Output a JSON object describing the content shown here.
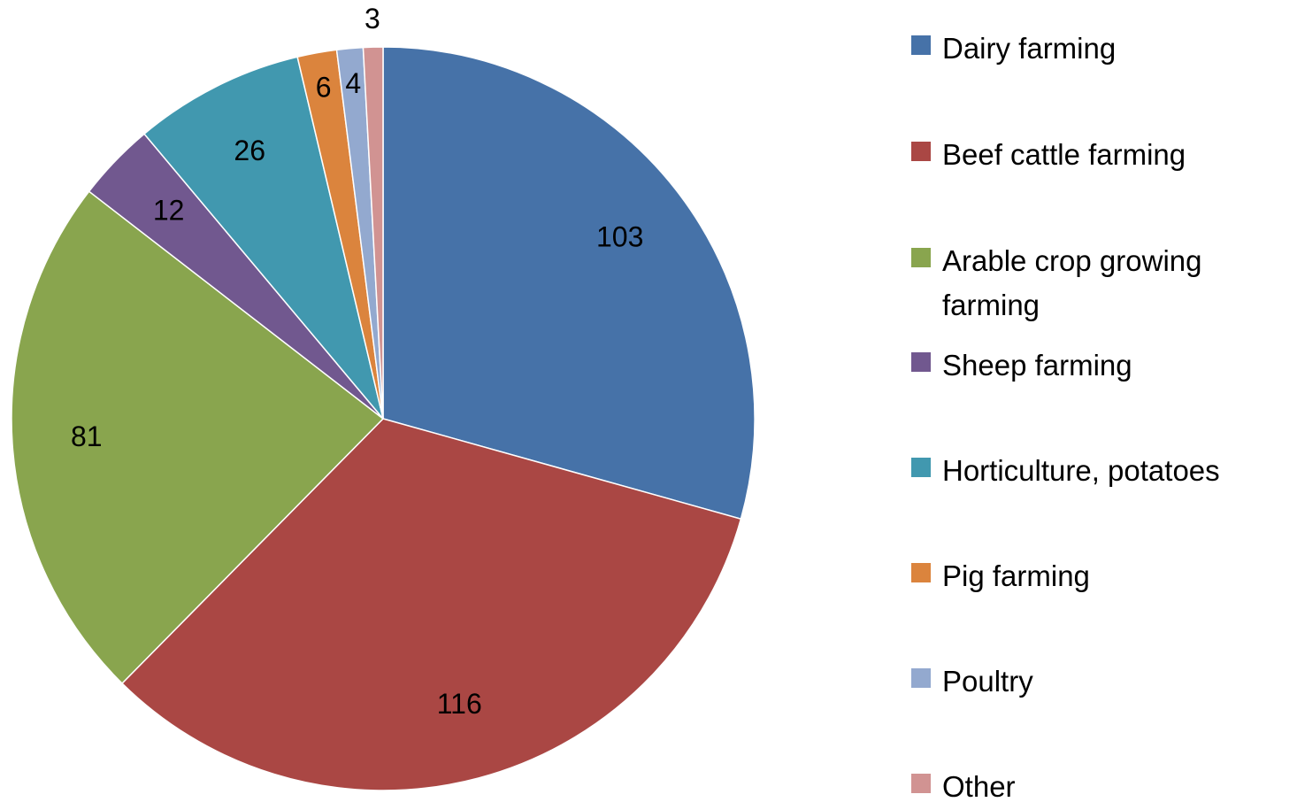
{
  "chart_data": {
    "type": "pie",
    "categories": [
      "Dairy farming",
      "Beef cattle farming",
      "Arable crop growing farming",
      "Sheep farming",
      "Horticulture, potatoes",
      "Pig farming",
      "Poultry",
      "Other"
    ],
    "values": [
      103,
      116,
      81,
      12,
      26,
      6,
      4,
      3
    ],
    "colors": [
      "#4672a8",
      "#aa4744",
      "#89a54e",
      "#71588f",
      "#4198af",
      "#db843d",
      "#93a9cf",
      "#d19392"
    ],
    "legend": "right"
  }
}
